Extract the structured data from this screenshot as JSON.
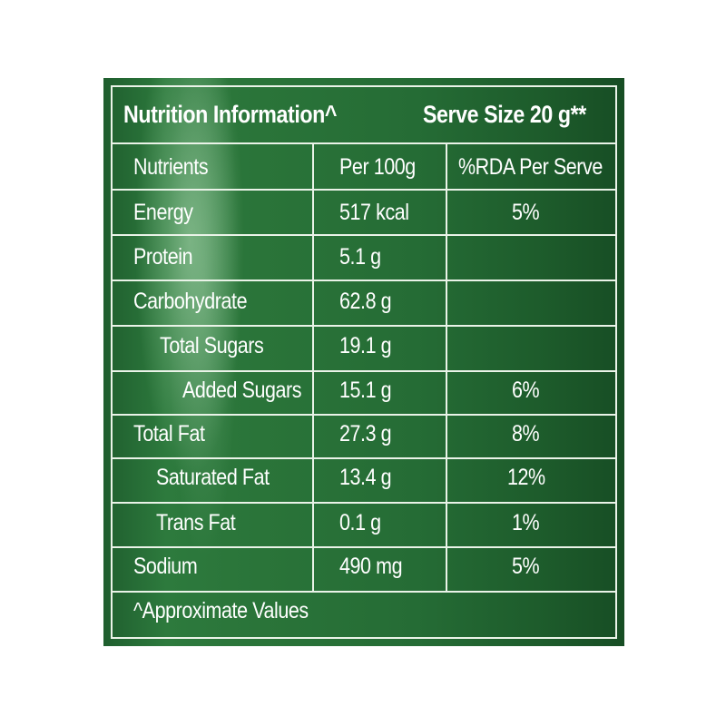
{
  "header": {
    "title": "Nutrition Information^",
    "serve_size": "Serve Size 20 g**"
  },
  "columns": {
    "nutrients": "Nutrients",
    "per_100g": "Per 100g",
    "rda": "%RDA Per Serve"
  },
  "rows": [
    {
      "nutrient": "Energy",
      "per100": "517 kcal",
      "rda": "5%"
    },
    {
      "nutrient": "Protein",
      "per100": "5.1 g",
      "rda": ""
    },
    {
      "nutrient": "Carbohydrate",
      "per100": "62.8 g",
      "rda": ""
    },
    {
      "nutrient": "Total Sugars",
      "per100": "19.1 g",
      "rda": ""
    },
    {
      "nutrient": "Added Sugars",
      "per100": "15.1 g",
      "rda": "6%"
    },
    {
      "nutrient": "Total Fat",
      "per100": "27.3 g",
      "rda": "8%"
    },
    {
      "nutrient": "Saturated Fat",
      "per100": "13.4 g",
      "rda": "12%"
    },
    {
      "nutrient": "Trans Fat",
      "per100": "0.1 g",
      "rda": "1%"
    },
    {
      "nutrient": "Sodium",
      "per100": "490 mg",
      "rda": "5%"
    }
  ],
  "footnote": "^Approximate Values",
  "colors": {
    "panel_green": "#256c35",
    "line": "#eaf3e8",
    "text": "#ffffff"
  }
}
